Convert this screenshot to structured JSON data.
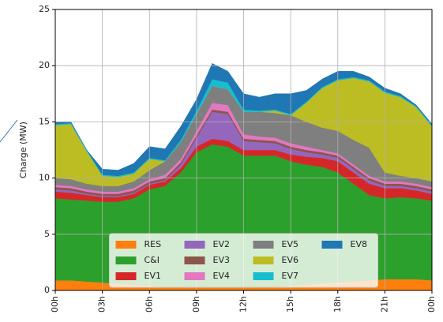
{
  "chart_data": {
    "type": "stacked_area",
    "y_label": "Charge (MW)",
    "x": [
      0,
      1,
      2,
      3,
      4,
      5,
      6,
      7,
      8,
      9,
      10,
      11,
      12,
      13,
      14,
      15,
      16,
      17,
      18,
      19,
      20,
      21,
      22,
      23,
      24
    ],
    "xlim": [
      0,
      24
    ],
    "xticks": [
      {
        "value": 0,
        "label": "00h"
      },
      {
        "value": 3,
        "label": "03h"
      },
      {
        "value": 6,
        "label": "06h"
      },
      {
        "value": 9,
        "label": "09h"
      },
      {
        "value": 12,
        "label": "12h"
      },
      {
        "value": 15,
        "label": "15h"
      },
      {
        "value": 18,
        "label": "18h"
      },
      {
        "value": 21,
        "label": "21h"
      },
      {
        "value": 24,
        "label": "00h"
      }
    ],
    "ylim": [
      0,
      25
    ],
    "yticks": [
      0,
      5,
      10,
      15,
      20,
      25
    ],
    "grid": true,
    "legend": "lower center",
    "series": [
      {
        "name": "RES",
        "color": "#ff7f0e",
        "values": [
          0.9,
          0.9,
          0.8,
          0.7,
          0.6,
          0.5,
          0.4,
          0.3,
          0.3,
          0.3,
          0.3,
          0.3,
          0.3,
          0.3,
          0.3,
          0.4,
          0.5,
          0.6,
          0.7,
          0.8,
          0.9,
          1.0,
          1.0,
          1.0,
          0.9
        ]
      },
      {
        "name": "C&I",
        "color": "#2ca02c",
        "values": [
          7.3,
          7.2,
          7.2,
          7.2,
          7.3,
          7.7,
          8.6,
          9.0,
          10.2,
          12.0,
          12.7,
          12.5,
          11.7,
          11.7,
          11.7,
          11.1,
          10.7,
          10.4,
          9.8,
          8.7,
          7.6,
          7.2,
          7.3,
          7.2,
          7.1
        ]
      },
      {
        "name": "EV1",
        "color": "#d62728",
        "values": [
          0.6,
          0.6,
          0.5,
          0.4,
          0.4,
          0.4,
          0.4,
          0.4,
          0.4,
          0.5,
          0.5,
          0.5,
          0.5,
          0.5,
          0.5,
          0.6,
          0.7,
          0.8,
          1.0,
          1.0,
          1.0,
          0.9,
          0.8,
          0.7,
          0.6
        ]
      },
      {
        "name": "EV2",
        "color": "#9467bd",
        "values": [
          0.2,
          0.2,
          0.1,
          0.1,
          0.1,
          0.1,
          0.1,
          0.1,
          0.3,
          0.8,
          2.4,
          2.4,
          0.8,
          0.7,
          0.6,
          0.5,
          0.4,
          0.3,
          0.3,
          0.3,
          0.3,
          0.2,
          0.2,
          0.2,
          0.2
        ]
      },
      {
        "name": "EV3",
        "color": "#8c564b",
        "values": [
          0.2,
          0.2,
          0.2,
          0.2,
          0.2,
          0.2,
          0.2,
          0.2,
          0.2,
          0.2,
          0.2,
          0.2,
          0.2,
          0.2,
          0.2,
          0.2,
          0.2,
          0.2,
          0.2,
          0.2,
          0.2,
          0.2,
          0.2,
          0.2,
          0.2
        ]
      },
      {
        "name": "EV4",
        "color": "#e377c2",
        "values": [
          0.2,
          0.2,
          0.2,
          0.2,
          0.2,
          0.2,
          0.2,
          0.3,
          0.3,
          0.4,
          0.6,
          0.6,
          0.4,
          0.3,
          0.3,
          0.3,
          0.3,
          0.2,
          0.2,
          0.2,
          0.2,
          0.2,
          0.2,
          0.2,
          0.2
        ]
      },
      {
        "name": "EV5",
        "color": "#7f7f7f",
        "values": [
          0.6,
          0.6,
          0.5,
          0.5,
          0.5,
          0.6,
          0.8,
          1.2,
          1.5,
          1.5,
          1.5,
          1.4,
          2.0,
          2.2,
          2.2,
          2.5,
          2.2,
          2.0,
          2.0,
          2.2,
          2.5,
          0.8,
          0.5,
          0.5,
          0.5
        ]
      },
      {
        "name": "EV6",
        "color": "#bcbd22",
        "values": [
          4.7,
          4.9,
          2.9,
          0.9,
          0.8,
          0.7,
          1.0,
          0.0,
          0.0,
          0.0,
          0.0,
          0.0,
          0.0,
          0.0,
          0.2,
          0.0,
          1.7,
          3.5,
          4.5,
          5.5,
          5.9,
          7.1,
          7.0,
          6.3,
          4.9
        ]
      },
      {
        "name": "EV7",
        "color": "#17becf",
        "values": [
          0.1,
          0.1,
          0.1,
          0.1,
          0.1,
          0.1,
          0.1,
          0.1,
          0.2,
          0.3,
          0.6,
          0.6,
          0.2,
          0.1,
          0.1,
          0.1,
          0.1,
          0.1,
          0.1,
          0.1,
          0.1,
          0.1,
          0.1,
          0.1,
          0.1
        ]
      },
      {
        "name": "EV8",
        "color": "#1f77b4",
        "values": [
          0.2,
          0.1,
          0.0,
          0.5,
          0.5,
          0.8,
          1.0,
          1.0,
          1.2,
          1.0,
          1.4,
          1.0,
          1.4,
          1.2,
          1.4,
          1.8,
          1.0,
          0.7,
          0.7,
          0.5,
          0.3,
          0.3,
          0.2,
          0.1,
          0.1
        ]
      }
    ]
  }
}
